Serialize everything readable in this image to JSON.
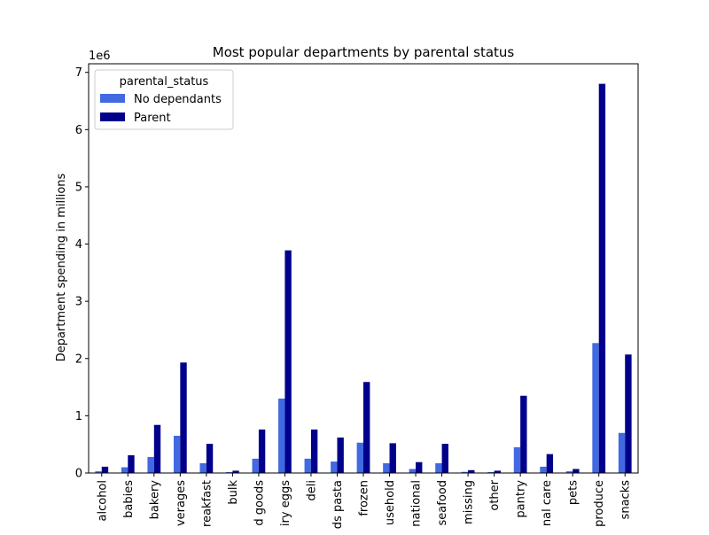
{
  "chart_data": {
    "type": "bar",
    "title": "Most popular departments by parental status",
    "ylabel": "Department spending in millions",
    "xlabel": "",
    "y_scale_label": "1e6",
    "ylim": [
      0,
      7150000
    ],
    "yticks": [
      0,
      1000000,
      2000000,
      3000000,
      4000000,
      5000000,
      6000000,
      7000000
    ],
    "ytick_labels": [
      "0",
      "1",
      "2",
      "3",
      "4",
      "5",
      "6",
      "7"
    ],
    "grid": false,
    "legend": {
      "title": "parental_status",
      "placement": "top-left"
    },
    "categories_displayed": [
      "alcohol",
      "babies",
      "bakery",
      "verages",
      "reakfast",
      "bulk",
      "d goods",
      "iry eggs",
      "deli",
      "ds pasta",
      "frozen",
      "usehold",
      "national",
      "seafood",
      "missing",
      "other",
      "pantry",
      "nal care",
      "pets",
      "produce",
      "snacks"
    ],
    "series": [
      {
        "name": "No dependants",
        "color": "#4169E1",
        "values": [
          30000,
          100000,
          280000,
          650000,
          170000,
          15000,
          250000,
          1300000,
          250000,
          200000,
          530000,
          170000,
          70000,
          170000,
          20000,
          15000,
          450000,
          110000,
          30000,
          2270000,
          700000
        ]
      },
      {
        "name": "Parent",
        "color": "#00008B",
        "values": [
          110000,
          310000,
          840000,
          1930000,
          510000,
          40000,
          760000,
          3890000,
          760000,
          620000,
          1590000,
          520000,
          190000,
          510000,
          50000,
          40000,
          1350000,
          330000,
          70000,
          6800000,
          2070000
        ]
      }
    ]
  }
}
